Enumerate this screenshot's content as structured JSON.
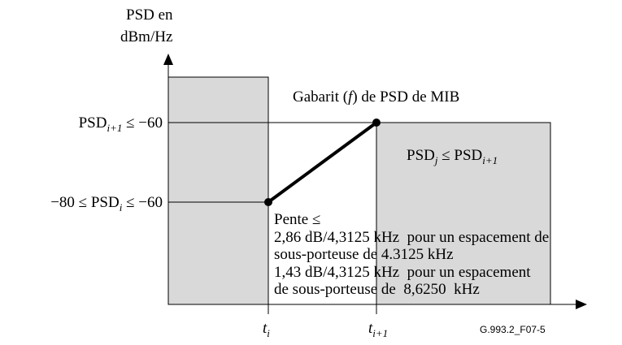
{
  "y_axis_label": [
    "PSD en",
    "dBm/Hz"
  ],
  "mask_title": {
    "before": "Gabarit (",
    "italic": "f",
    "after": ") de PSD de MIB"
  },
  "upper_level": {
    "base": "PSD",
    "sub": "i+1",
    "rest": " ≤ −60"
  },
  "lower_level": {
    "pre": "−80 ≤ PSD",
    "sub": "i",
    "rest": " ≤ −60"
  },
  "right_region": {
    "base": "PSD",
    "sub": "j",
    "mid": " ≤ PSD",
    "sub2": "i+1"
  },
  "slope_note": [
    "Pente ≤",
    "2,86 dB/4,3125 kHz  pour un espacement de",
    "sous-porteuse de 4.3125 kHz",
    "1,43 dB/4,3125 kHz  pour un espacement",
    "de sous-porteuse de  8,6250  kHz"
  ],
  "x_marks": [
    {
      "base": "t",
      "sub": "i"
    },
    {
      "base": "t",
      "sub": "i+1"
    }
  ],
  "figure_id": "G.993.2_F07-5"
}
